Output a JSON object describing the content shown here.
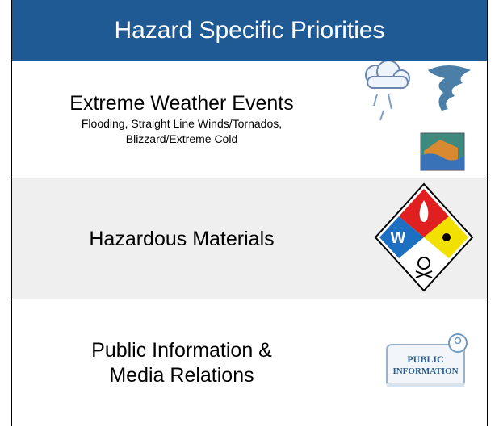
{
  "header": {
    "title": "Hazard Specific Priorities"
  },
  "rows": [
    {
      "title_lines": [
        "Extreme Weather Events"
      ],
      "subtitle_lines": [
        "Flooding, Straight Line Winds/Tornados,",
        "Blizzard/Extreme Cold"
      ]
    },
    {
      "title_lines": [
        "Hazardous Materials"
      ]
    },
    {
      "title_lines": [
        "Public Information &",
        "Media Relations"
      ],
      "icon_text": [
        "PUBLIC",
        "INFORMATION"
      ]
    }
  ],
  "hazmat_icon": {
    "text": "W"
  }
}
